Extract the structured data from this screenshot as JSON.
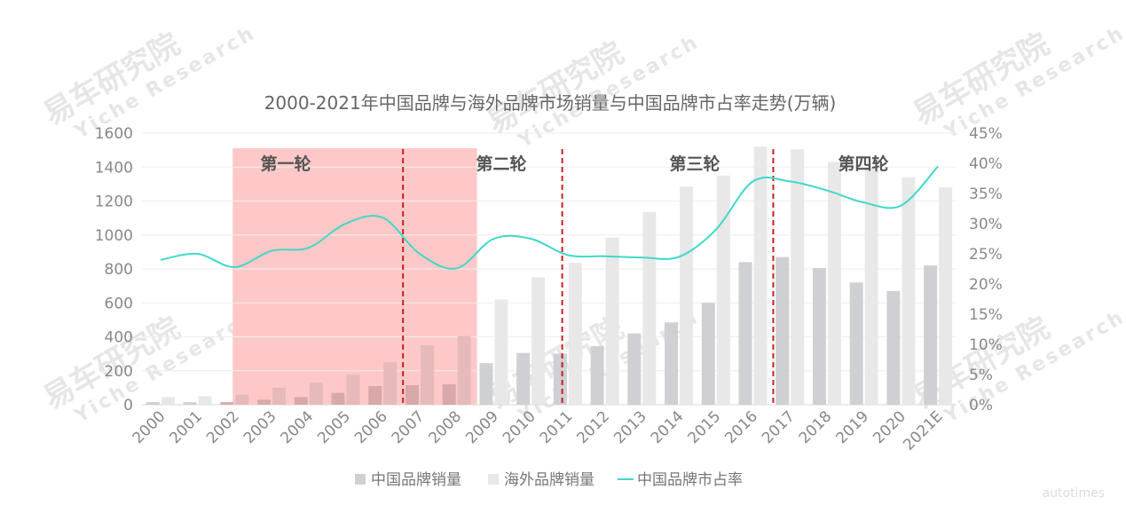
{
  "watermark": {
    "line1": "易车研究院",
    "line2": "Yiche Research"
  },
  "footer_logo": "autotimes",
  "chart_data": {
    "type": "bar+line",
    "title": "2000-2021年中国品牌与海外品牌市场销量与中国品牌市占率走势(万辆)",
    "categories": [
      "2000",
      "2001",
      "2002",
      "2003",
      "2004",
      "2005",
      "2006",
      "2007",
      "2008",
      "2009",
      "2010",
      "2011",
      "2012",
      "2013",
      "2014",
      "2015",
      "2016",
      "2017",
      "2018",
      "2019",
      "2020",
      "2021E"
    ],
    "series": [
      {
        "name": "中国品牌销量",
        "type": "bar",
        "axis": "left",
        "color": "#cfd0d4",
        "values": [
          15,
          15,
          15,
          30,
          45,
          70,
          110,
          115,
          120,
          245,
          305,
          300,
          345,
          420,
          485,
          600,
          840,
          870,
          805,
          720,
          670,
          820
        ]
      },
      {
        "name": "海外品牌销量",
        "type": "bar",
        "axis": "left",
        "color": "#e8e8e8",
        "values": [
          45,
          50,
          60,
          100,
          130,
          175,
          250,
          350,
          405,
          620,
          750,
          835,
          985,
          1135,
          1285,
          1350,
          1520,
          1505,
          1430,
          1400,
          1340,
          1280
        ]
      },
      {
        "name": "中国品牌市占率",
        "type": "line",
        "axis": "right",
        "color": "#3fd9c8",
        "values": [
          24.0,
          25.0,
          22.8,
          25.5,
          26.0,
          30.0,
          31.0,
          25.0,
          22.6,
          27.5,
          27.5,
          24.8,
          24.6,
          24.4,
          24.5,
          29.0,
          37.0,
          37.0,
          35.5,
          33.5,
          33.0,
          39.5
        ]
      }
    ],
    "y_left": {
      "min": 0,
      "max": 1600,
      "ticks": [
        "0",
        "200",
        "400",
        "600",
        "800",
        "1000",
        "1200",
        "1400",
        "1600"
      ]
    },
    "y_right": {
      "min": 0,
      "max": 45,
      "ticks": [
        "0%",
        "5%",
        "10%",
        "15%",
        "20%",
        "25%",
        "30%",
        "35%",
        "40%",
        "45%"
      ]
    },
    "grid": true,
    "legend_position": "bottom",
    "shaded_region": {
      "from": "2002",
      "to": "2008",
      "color": "#ffc8c8"
    },
    "phases": [
      {
        "label": "第一轮",
        "at": "2003"
      },
      {
        "label": "第二轮",
        "at": "2009"
      },
      {
        "label": "第三轮",
        "at": "2014"
      },
      {
        "label": "第四轮",
        "at": "2019"
      }
    ],
    "dividers": [
      7,
      11,
      17
    ]
  }
}
